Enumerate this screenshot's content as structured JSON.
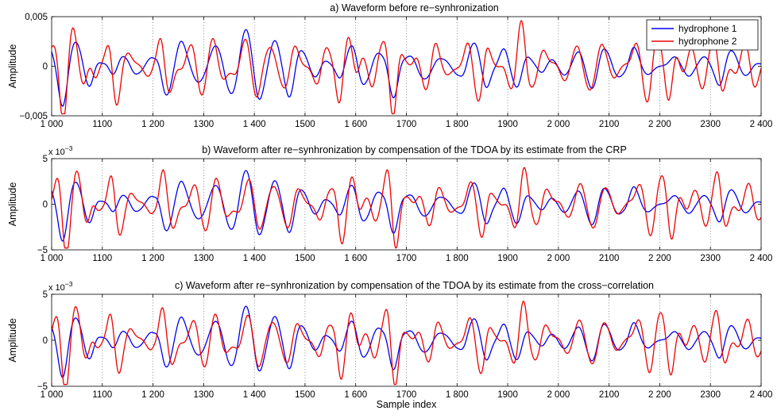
{
  "chart_data": [
    {
      "type": "line",
      "title": "a) Waveform before re−synhronization",
      "xlabel": "",
      "ylabel": "Amplitude",
      "xlim": [
        1000,
        2400
      ],
      "ylim": [
        -0.005,
        0.005
      ],
      "ytick_labels": [
        "0,005",
        "0",
        "−0,005"
      ],
      "ytick_values": [
        0.005,
        0,
        -0.005
      ],
      "y_exponent": "",
      "grid": "vertical dotted",
      "legend": {
        "placement": "top-right",
        "entries": [
          "hydrophone 1",
          "hydrophone 2"
        ]
      },
      "series": [
        {
          "name": "hydrophone 1",
          "color": "#0000ee",
          "seed": 11,
          "phase_shift": 0
        },
        {
          "name": "hydrophone 2",
          "color": "#ee0000",
          "seed": 29,
          "phase_shift": 9
        }
      ],
      "amplitude_peak": 0.0045
    },
    {
      "type": "line",
      "title": "b) Waveform after re−synhronization by compensation of the TDOA by its estimate from the CRP",
      "xlabel": "",
      "ylabel": "Amplitude",
      "xlim": [
        1000,
        2400
      ],
      "ylim": [
        -5,
        5
      ],
      "ytick_labels": [
        "5",
        "0",
        "−5"
      ],
      "ytick_values": [
        5,
        0,
        -5
      ],
      "y_exponent": "x 10",
      "y_exponent_power": "−3",
      "grid": "vertical dotted",
      "series": [
        {
          "name": "hydrophone 1",
          "color": "#0000ee",
          "seed": 11,
          "phase_shift": 0
        },
        {
          "name": "hydrophone 2",
          "color": "#ee0000",
          "seed": 29,
          "phase_shift": 2
        }
      ],
      "amplitude_peak": 4.5
    },
    {
      "type": "line",
      "title": "c) Waveform after re−synhronization by compensation of the TDOA by its estimate from the cross−correlation",
      "xlabel": "Sample index",
      "ylabel": "Amplitude",
      "xlim": [
        1000,
        2400
      ],
      "ylim": [
        -5,
        5
      ],
      "ytick_labels": [
        "5",
        "0",
        "−5"
      ],
      "ytick_values": [
        5,
        0,
        -5
      ],
      "y_exponent": "x 10",
      "y_exponent_power": "−3",
      "grid": "vertical dotted",
      "series": [
        {
          "name": "hydrophone 1",
          "color": "#0000ee",
          "seed": 11,
          "phase_shift": 0
        },
        {
          "name": "hydrophone 2",
          "color": "#ee0000",
          "seed": 29,
          "phase_shift": 4
        }
      ],
      "amplitude_peak": 4.5
    }
  ],
  "x_ticks": {
    "values": [
      1000,
      1100,
      1200,
      1300,
      1400,
      1500,
      1600,
      1700,
      1800,
      1900,
      2000,
      2100,
      2200,
      2300,
      2400
    ],
    "labels": [
      "1 000",
      "1100",
      "1 200",
      "1300",
      "1 400",
      "1500",
      "1 600",
      "1700",
      "1 800",
      "1900",
      "2 000",
      "2100",
      "2 200",
      "2300",
      "2 400"
    ]
  }
}
